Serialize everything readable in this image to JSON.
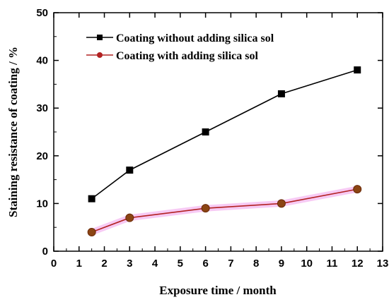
{
  "chart_data": {
    "type": "line",
    "xlabel": "Exposure time / month",
    "ylabel": "Staining resistance of coating / %",
    "xlim": [
      0,
      13
    ],
    "ylim": [
      0,
      50
    ],
    "xticks": [
      0,
      1,
      2,
      3,
      4,
      5,
      6,
      7,
      8,
      9,
      10,
      11,
      12,
      13
    ],
    "yticks": [
      0,
      10,
      20,
      30,
      40,
      50
    ],
    "xtick_labels": [
      "0",
      "1",
      "2",
      "3",
      "4",
      "5",
      "6",
      "7",
      "8",
      "9",
      "10",
      "11",
      "12",
      "13"
    ],
    "ytick_labels": [
      "0",
      "10",
      "20",
      "30",
      "40",
      "50"
    ],
    "grid": false,
    "legend_position": "top-left",
    "series": [
      {
        "name": "Coating without adding silica sol",
        "x": [
          1.5,
          3,
          6,
          9,
          12
        ],
        "y": [
          11,
          17,
          25,
          33,
          38
        ],
        "color": "#000000",
        "marker": "square"
      },
      {
        "name": "Coating with adding silica sol",
        "x": [
          1.5,
          3,
          6,
          9,
          12
        ],
        "y": [
          4,
          7,
          9,
          10,
          13
        ],
        "color": "#b22222",
        "marker": "circle",
        "marker_color": "#8b4513",
        "band_color": "#f4b8f0"
      }
    ]
  }
}
